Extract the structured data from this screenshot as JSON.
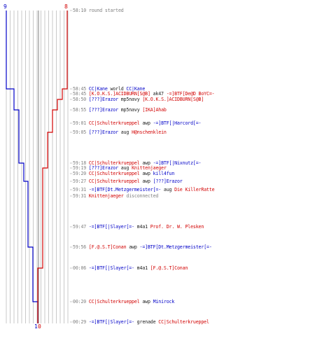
{
  "chart_data": {
    "type": "line",
    "title": "",
    "series": [
      {
        "name": "",
        "color": "#0000c8",
        "start_score": "9",
        "end_score": "10"
      },
      {
        "name": "",
        "color": "#d20000",
        "start_score": "8",
        "end_score": "10"
      }
    ],
    "events": [
      {
        "time": "58:10",
        "parts": [
          {
            "t": "round started",
            "c": "gray"
          }
        ]
      },
      {
        "time": "58:45",
        "parts": [
          {
            "t": "CC|Kane",
            "c": "blue"
          },
          {
            "t": " world ",
            "c": "blk"
          },
          {
            "t": "CC|Kane",
            "c": "blue"
          }
        ]
      },
      {
        "time": "58:45",
        "parts": [
          {
            "t": "[K.O.K.S.]ACIDBURN[S@B]",
            "c": "red"
          },
          {
            "t": " ak47 ",
            "c": "blk"
          },
          {
            "t": "-=]BTF[De@D BoYC=-",
            "c": "red"
          }
        ]
      },
      {
        "time": "58:50",
        "parts": [
          {
            "t": "[???]Erazor",
            "c": "blue"
          },
          {
            "t": " mp5navy ",
            "c": "blk"
          },
          {
            "t": "[K.O.K.S.]ACIDBURN[S@B]",
            "c": "red"
          }
        ]
      },
      {
        "time": "58:55",
        "parts": [
          {
            "t": "[???]Erazor",
            "c": "blue"
          },
          {
            "t": " mp5navy ",
            "c": "blk"
          },
          {
            "t": "[IKA]Ahab",
            "c": "red"
          }
        ]
      },
      {
        "time": "59:01",
        "parts": [
          {
            "t": "CC|Schulterkrueppel",
            "c": "red"
          },
          {
            "t": " awp ",
            "c": "blk"
          },
          {
            "t": "-=]BTF[|Harcord[=-",
            "c": "blue"
          }
        ]
      },
      {
        "time": "59:05",
        "parts": [
          {
            "t": "[???]Erazor",
            "c": "blue"
          },
          {
            "t": " aug ",
            "c": "blk"
          },
          {
            "t": "H@nschenklein",
            "c": "red"
          }
        ]
      },
      {
        "time": "59:18",
        "parts": [
          {
            "t": "CC|Schulterkrueppel",
            "c": "red"
          },
          {
            "t": " awp ",
            "c": "blk"
          },
          {
            "t": "-=]BTF[|Nixnutz[=-",
            "c": "blue"
          }
        ]
      },
      {
        "time": "59:19",
        "parts": [
          {
            "t": "[???]Erazor",
            "c": "blue"
          },
          {
            "t": " aug ",
            "c": "blk"
          },
          {
            "t": "Knittenjaeger",
            "c": "red"
          }
        ]
      },
      {
        "time": "59:20",
        "parts": [
          {
            "t": "CC|Schulterkrueppel",
            "c": "red"
          },
          {
            "t": " awp ",
            "c": "blk"
          },
          {
            "t": "kill4fun",
            "c": "blue"
          }
        ]
      },
      {
        "time": "59:27",
        "parts": [
          {
            "t": "CC|Schulterkrueppel",
            "c": "red"
          },
          {
            "t": " awp ",
            "c": "blk"
          },
          {
            "t": "[???]Erazor",
            "c": "blue"
          }
        ]
      },
      {
        "time": "59:31",
        "parts": [
          {
            "t": "-=]BTF[Dt.Metzgermeister[=-",
            "c": "blue"
          },
          {
            "t": " aug ",
            "c": "blk"
          },
          {
            "t": "Die KillerRatte",
            "c": "red"
          }
        ]
      },
      {
        "time": "59:31",
        "parts": [
          {
            "t": "Knittenjaeger",
            "c": "red"
          },
          {
            "t": " disconnected",
            "c": "gray"
          }
        ]
      },
      {
        "time": "59:47",
        "parts": [
          {
            "t": "-=]BTF[|Slayer[=-",
            "c": "blue"
          },
          {
            "t": " m4a1 ",
            "c": "blk"
          },
          {
            "t": "Prof. Dr. W. Plesken",
            "c": "red"
          }
        ]
      },
      {
        "time": "59:56",
        "parts": [
          {
            "t": "[F.@.S.T]Conan",
            "c": "red"
          },
          {
            "t": " awp ",
            "c": "blk"
          },
          {
            "t": "-=]BTF[Dt.Metzgermeister[=-",
            "c": "blue"
          }
        ]
      },
      {
        "time": "00:06",
        "parts": [
          {
            "t": "-=]BTF[|Slayer[=-",
            "c": "blue"
          },
          {
            "t": " m4a1 ",
            "c": "blk"
          },
          {
            "t": "[F.@.S.T]Conan",
            "c": "red"
          }
        ]
      },
      {
        "time": "00:20",
        "parts": [
          {
            "t": "CC|Schulterkrueppel",
            "c": "red"
          },
          {
            "t": " awp ",
            "c": "blk"
          },
          {
            "t": "Minirock",
            "c": "blue"
          }
        ]
      },
      {
        "time": "00:29",
        "parts": [
          {
            "t": "-=]BTF[|Slayer[=-",
            "c": "blue"
          },
          {
            "t": " grenade ",
            "c": "blk"
          },
          {
            "t": "CC|Schulterkrueppel",
            "c": "red"
          }
        ]
      }
    ]
  },
  "colors": {
    "blue": "#0000c8",
    "red": "#d20000",
    "grid": "#c8c8c8",
    "axis": "#808080"
  }
}
